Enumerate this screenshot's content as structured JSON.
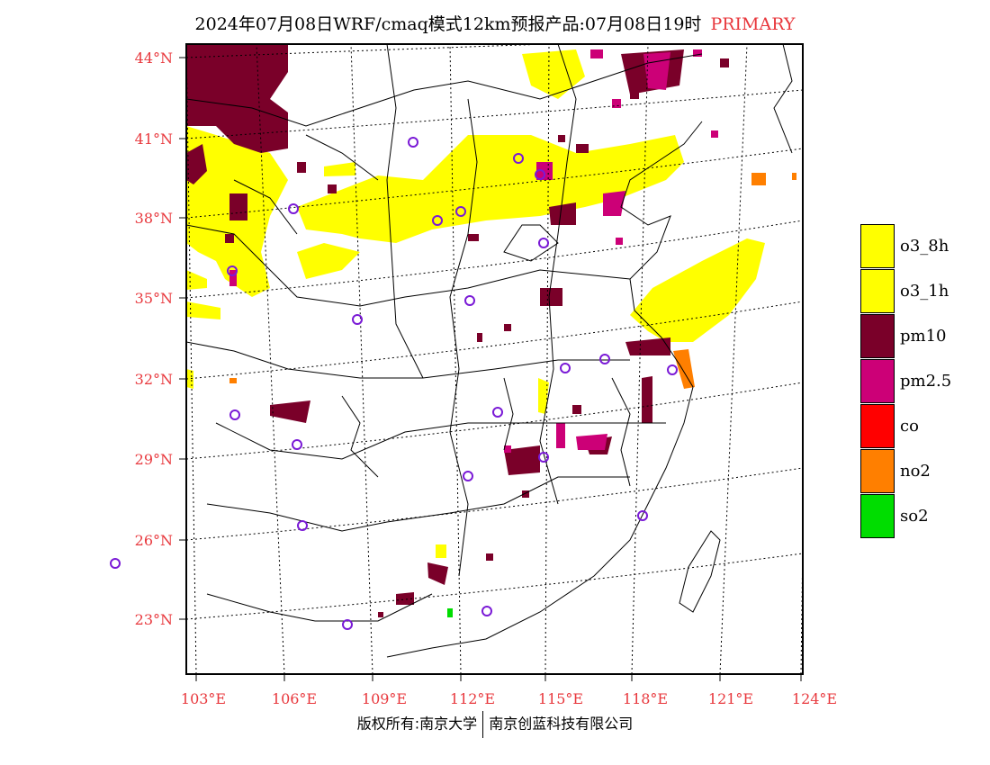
{
  "title": {
    "main": "2024年07月08日WRF/cmaq模式12km预报产品:07月08日19时",
    "tag": "PRIMARY"
  },
  "map": {
    "lon_labels": [
      "103°E",
      "106°E",
      "109°E",
      "112°E",
      "115°E",
      "118°E",
      "121°E",
      "124°E"
    ],
    "lat_labels": [
      "44°N",
      "41°N",
      "38°N",
      "35°N",
      "32°N",
      "29°N",
      "26°N",
      "23°N"
    ],
    "label_color": "#e8383d",
    "layers": {
      "o3": {
        "color": "#ffff00"
      },
      "pm10": {
        "color": "#7a0029"
      },
      "pm25": {
        "color": "#cc0077"
      },
      "no2": {
        "color": "#ff7f00"
      },
      "so2": {
        "color": "#00dd00"
      },
      "station_marker_color": "#7a1ad6"
    }
  },
  "legend": [
    {
      "label": "o3_8h",
      "color": "#ffff00"
    },
    {
      "label": "o3_1h",
      "color": "#ffff00"
    },
    {
      "label": "pm10",
      "color": "#7a0029"
    },
    {
      "label": "pm2.5",
      "color": "#cc0077"
    },
    {
      "label": "co",
      "color": "#ff0000"
    },
    {
      "label": "no2",
      "color": "#ff7f00"
    },
    {
      "label": "so2",
      "color": "#00dd00"
    }
  ],
  "footer": {
    "left": "版权所有:南京大学",
    "right": "南京创蓝科技有限公司"
  }
}
